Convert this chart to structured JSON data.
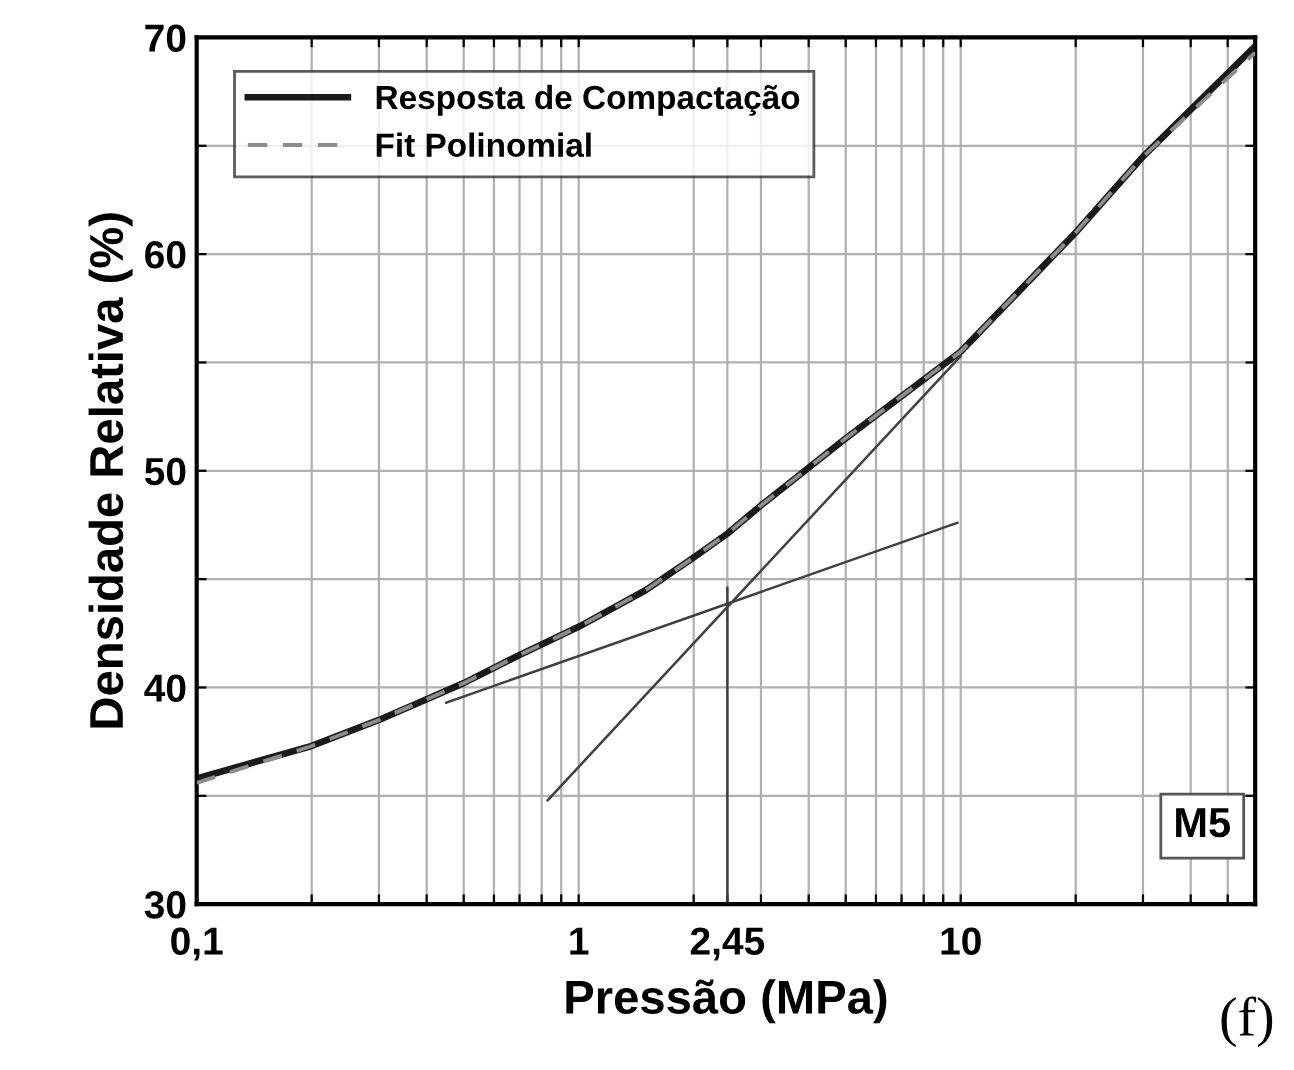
{
  "chart_data": {
    "type": "line",
    "xlabel": "Pressão (MPa)",
    "ylabel": "Densidade Relativa (%)",
    "log": "x",
    "grid": true,
    "legend": "top left",
    "xlim": [
      0.1,
      59
    ],
    "ylim": [
      30,
      70
    ],
    "xticks": [
      {
        "value": 0.1,
        "label": "0,1"
      },
      {
        "value": 0.2,
        "label": null
      },
      {
        "value": 0.3,
        "label": null
      },
      {
        "value": 0.4,
        "label": null
      },
      {
        "value": 0.5,
        "label": null
      },
      {
        "value": 0.6,
        "label": null
      },
      {
        "value": 0.7,
        "label": null
      },
      {
        "value": 0.8,
        "label": null
      },
      {
        "value": 0.9,
        "label": null
      },
      1,
      {
        "value": 2,
        "label": null
      },
      {
        "value": 2.45,
        "label": "2,45"
      },
      {
        "value": 3,
        "label": null
      },
      {
        "value": 4,
        "label": null
      },
      {
        "value": 5,
        "label": null
      },
      {
        "value": 6,
        "label": null
      },
      {
        "value": 7,
        "label": null
      },
      {
        "value": 8,
        "label": null
      },
      {
        "value": 9,
        "label": null
      },
      10,
      {
        "value": 20,
        "label": null
      },
      {
        "value": 30,
        "label": null
      },
      {
        "value": 40,
        "label": null
      },
      {
        "value": 50,
        "label": null
      }
    ],
    "yticks": [
      30,
      {
        "value": 35,
        "label": null
      },
      40,
      {
        "value": 45,
        "label": null
      },
      50,
      {
        "value": 55,
        "label": null
      },
      60,
      {
        "value": 65,
        "label": null
      },
      70
    ],
    "series": [
      {
        "name": "Resposta de Compactação",
        "color": "#1a1a1a",
        "line_style": "solid",
        "x": [
          0.1,
          0.2,
          0.3,
          0.5,
          0.7,
          1,
          1.5,
          2,
          2.45,
          3,
          5,
          10,
          20,
          30,
          59
        ],
        "values": [
          35.8,
          37.3,
          38.5,
          40.2,
          41.5,
          42.8,
          44.5,
          46,
          47.1,
          48.4,
          51.5,
          55.5,
          61,
          64.5,
          69.6
        ]
      },
      {
        "name": "Fit Polinomial",
        "color": "#8c8c8c",
        "line_style": "dashed",
        "x": [
          0.1,
          0.2,
          0.3,
          0.5,
          0.7,
          1,
          1.5,
          2,
          2.45,
          3,
          5,
          10,
          20,
          30,
          59
        ],
        "values": [
          35.6,
          37.3,
          38.5,
          40.2,
          41.5,
          42.8,
          44.5,
          46,
          47.1,
          48.4,
          51.5,
          55.5,
          61,
          64.5,
          69.3
        ]
      },
      {
        "color": "#404040",
        "line_style": "solid",
        "x": [
          0.45,
          9.8
        ],
        "values": [
          39.3,
          47.6
        ]
      },
      {
        "color": "#404040",
        "line_style": "solid",
        "x": [
          0.83,
          10
        ],
        "values": [
          34.8,
          55.3
        ]
      },
      {
        "color": "#404040",
        "line_style": "solid",
        "x": [
          2.45,
          2.45
        ],
        "values": [
          30,
          44.6
        ]
      }
    ],
    "annotations": [
      "M5",
      "(f)"
    ]
  }
}
